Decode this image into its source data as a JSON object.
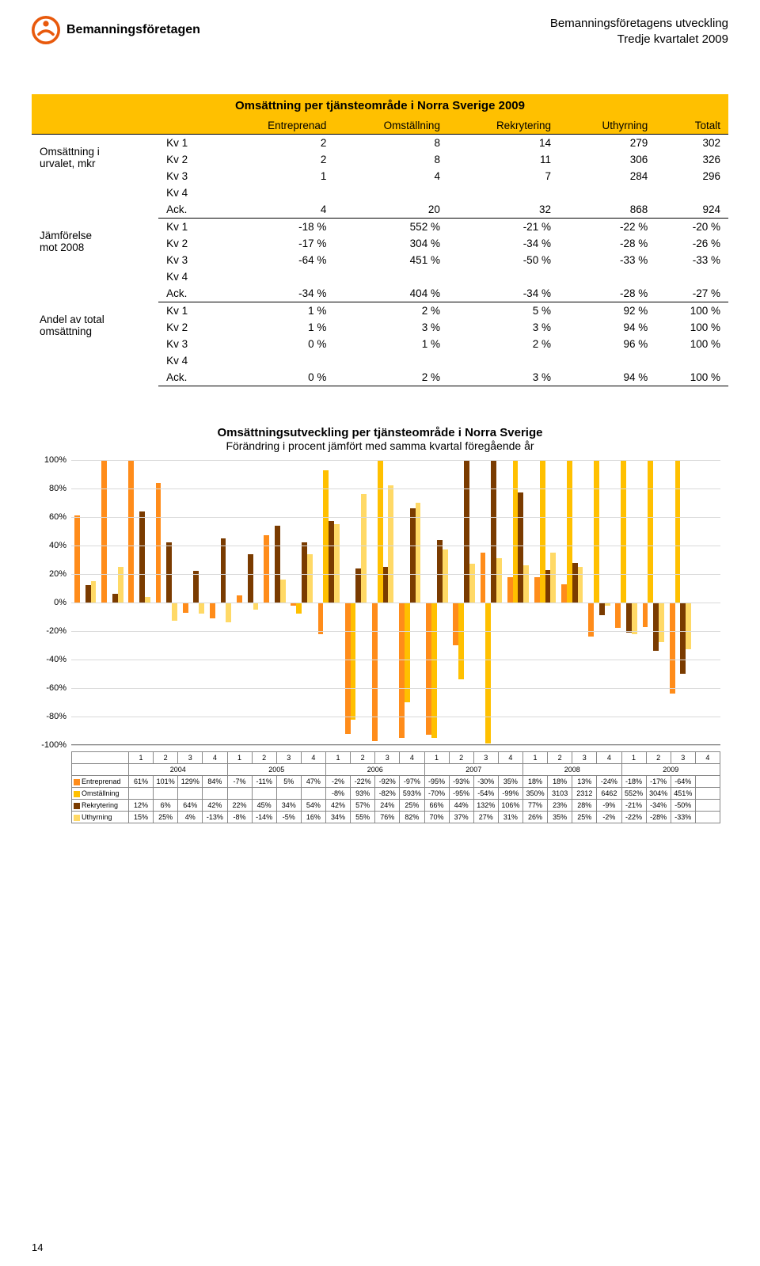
{
  "header": {
    "brand": "Bemanningsföretagen",
    "doc_title": "Bemanningsföretagens utveckling",
    "doc_subtitle": "Tredje kvartalet 2009"
  },
  "colors": {
    "brand_orange": "#e8590c",
    "table_header": "#ffc000",
    "entreprenad": "#ff8c1a",
    "omstallning": "#ffc000",
    "rekrytering": "#7a3b00",
    "uthyrning": "#ffd966",
    "grid": "#d9d9d9"
  },
  "main_table": {
    "title": "Omsättning per tjänsteområde i Norra Sverige 2009",
    "columns": [
      "",
      "",
      "Entreprenad",
      "Omställning",
      "Rekrytering",
      "Uthyrning",
      "Totalt"
    ],
    "groups": [
      {
        "label": "Omsättning i urvalet, mkr",
        "rows": [
          [
            "Kv 1",
            "2",
            "8",
            "14",
            "279",
            "302"
          ],
          [
            "Kv 2",
            "2",
            "8",
            "11",
            "306",
            "326"
          ],
          [
            "Kv 3",
            "1",
            "4",
            "7",
            "284",
            "296"
          ],
          [
            "Kv 4",
            "",
            "",
            "",
            "",
            ""
          ],
          [
            "Ack.",
            "4",
            "20",
            "32",
            "868",
            "924"
          ]
        ]
      },
      {
        "label": "Jämförelse mot 2008",
        "rows": [
          [
            "Kv 1",
            "-18 %",
            "552 %",
            "-21 %",
            "-22 %",
            "-20 %"
          ],
          [
            "Kv 2",
            "-17 %",
            "304 %",
            "-34 %",
            "-28 %",
            "-26 %"
          ],
          [
            "Kv 3",
            "-64 %",
            "451 %",
            "-50 %",
            "-33 %",
            "-33 %"
          ],
          [
            "Kv 4",
            "",
            "",
            "",
            "",
            ""
          ],
          [
            "Ack.",
            "-34 %",
            "404 %",
            "-34 %",
            "-28 %",
            "-27 %"
          ]
        ]
      },
      {
        "label": "Andel av total omsättning",
        "rows": [
          [
            "Kv 1",
            "1 %",
            "2 %",
            "5 %",
            "92 %",
            "100 %"
          ],
          [
            "Kv 2",
            "1 %",
            "3 %",
            "3 %",
            "94 %",
            "100 %"
          ],
          [
            "Kv 3",
            "0 %",
            "1 %",
            "2 %",
            "96 %",
            "100 %"
          ],
          [
            "Kv 4",
            "",
            "",
            "",
            "",
            ""
          ],
          [
            "Ack.",
            "0 %",
            "2 %",
            "3 %",
            "94 %",
            "100 %"
          ]
        ]
      }
    ]
  },
  "chart": {
    "title": "Omsättningsutveckling per tjänsteområde i Norra Sverige",
    "subtitle": "Förändring i procent jämfört med samma kvartal föregående år",
    "ylim": [
      -100,
      100
    ],
    "ytick_step": 20,
    "yticks": [
      "100%",
      "80%",
      "60%",
      "40%",
      "20%",
      "0%",
      "-20%",
      "-40%",
      "-60%",
      "-80%",
      "-100%"
    ],
    "years": [
      "2004",
      "2005",
      "2006",
      "2007",
      "2008",
      "2009"
    ],
    "quarters": [
      "1",
      "2",
      "3",
      "4"
    ],
    "series": [
      {
        "name": "Entreprenad",
        "color": "#ff8c1a",
        "values": [
          61,
          101,
          129,
          84,
          -7,
          -11,
          5,
          47,
          -2,
          -22,
          -92,
          -97,
          -95,
          -93,
          -30,
          35,
          18,
          18,
          13,
          -24,
          -18,
          -17,
          -64,
          null
        ],
        "labels": [
          "61%",
          "101%",
          "129%",
          "84%",
          "-7%",
          "-11%",
          "5%",
          "47%",
          "-2%",
          "-22%",
          "-92%",
          "-97%",
          "-95%",
          "-93%",
          "-30%",
          "35%",
          "18%",
          "18%",
          "13%",
          "-24%",
          "-18%",
          "-17%",
          "-64%",
          ""
        ]
      },
      {
        "name": "Omställning",
        "color": "#ffc000",
        "values": [
          null,
          null,
          null,
          null,
          null,
          null,
          null,
          null,
          -8,
          93,
          -82,
          593,
          -70,
          -95,
          -54,
          -99,
          350,
          3103,
          2312,
          6462,
          552,
          304,
          451,
          null
        ],
        "labels": [
          "",
          "",
          "",
          "",
          "",
          "",
          "",
          "",
          "-8%",
          "93%",
          "-82%",
          "593%",
          "-70%",
          "-95%",
          "-54%",
          "-99%",
          "350%",
          "3103",
          "2312",
          "6462",
          "552%",
          "304%",
          "451%",
          ""
        ]
      },
      {
        "name": "Rekrytering",
        "color": "#7a3b00",
        "values": [
          12,
          6,
          64,
          42,
          22,
          45,
          34,
          54,
          42,
          57,
          24,
          25,
          66,
          44,
          132,
          106,
          77,
          23,
          28,
          -9,
          -21,
          -34,
          -50,
          null
        ],
        "labels": [
          "12%",
          "6%",
          "64%",
          "42%",
          "22%",
          "45%",
          "34%",
          "54%",
          "42%",
          "57%",
          "24%",
          "25%",
          "66%",
          "44%",
          "132%",
          "106%",
          "77%",
          "23%",
          "28%",
          "-9%",
          "-21%",
          "-34%",
          "-50%",
          ""
        ]
      },
      {
        "name": "Uthyrning",
        "color": "#ffd966",
        "values": [
          15,
          25,
          4,
          -13,
          -8,
          -14,
          -5,
          16,
          34,
          55,
          76,
          82,
          70,
          37,
          27,
          31,
          26,
          35,
          25,
          -2,
          -22,
          -28,
          -33,
          null
        ],
        "labels": [
          "15%",
          "25%",
          "4%",
          "-13%",
          "-8%",
          "-14%",
          "-5%",
          "16%",
          "34%",
          "55%",
          "76%",
          "82%",
          "70%",
          "37%",
          "27%",
          "31%",
          "26%",
          "35%",
          "25%",
          "-2%",
          "-22%",
          "-28%",
          "-33%",
          ""
        ]
      }
    ]
  },
  "page_number": "14"
}
